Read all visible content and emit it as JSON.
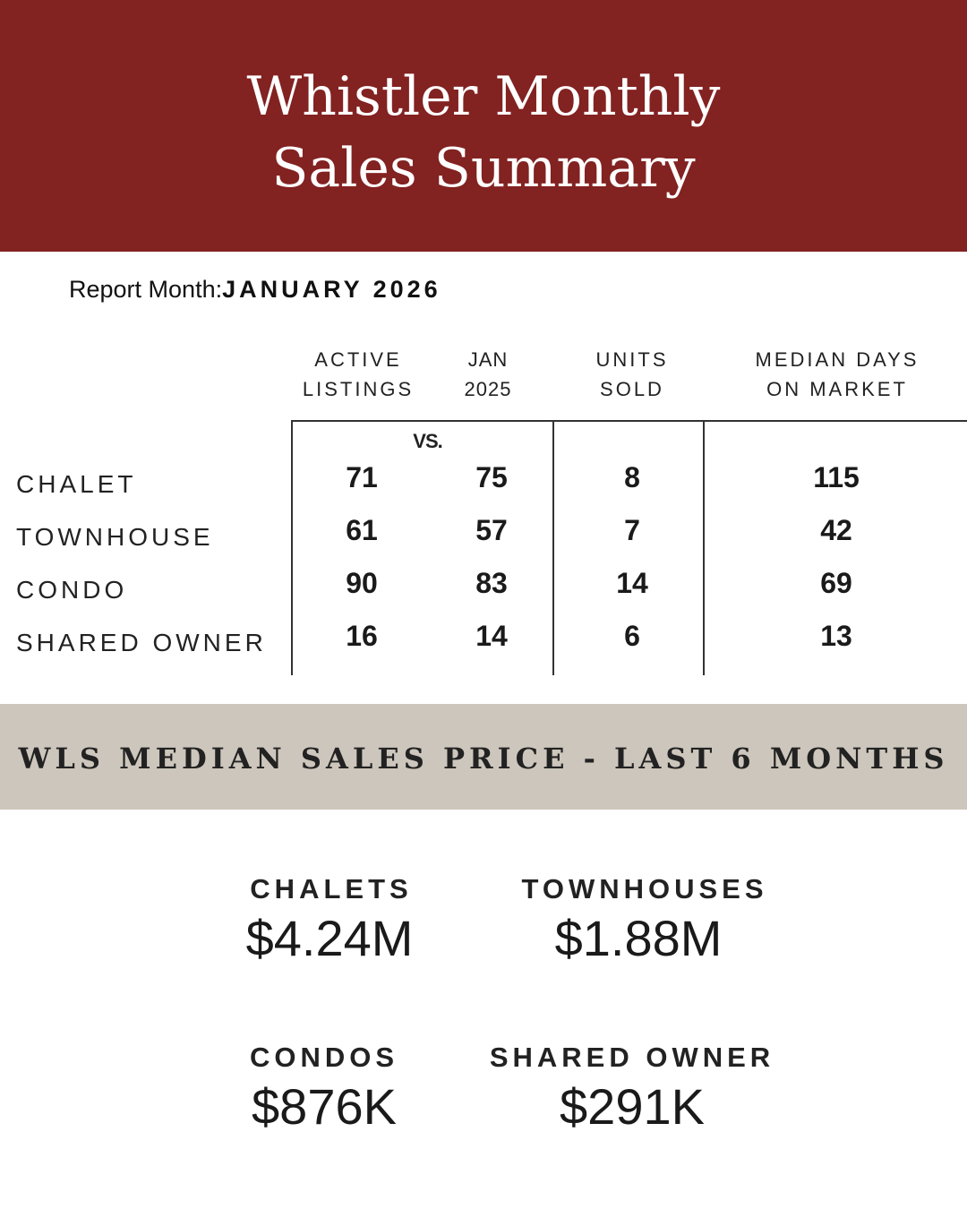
{
  "header": {
    "title_line1": "Whistler Monthly",
    "title_line2": "Sales Summary",
    "bg_color": "#822221"
  },
  "report": {
    "label": "Report Month:",
    "month": "JANUARY 2026"
  },
  "table": {
    "columns": [
      {
        "line1": "ACTIVE",
        "line2": "LISTINGS"
      },
      {
        "line1": "JAN",
        "line2": "2025"
      },
      {
        "line1": "UNITS",
        "line2": "SOLD"
      },
      {
        "line1": "MEDIAN DAYS",
        "line2": "ON MARKET"
      }
    ],
    "vs_label": "VS.",
    "rows": [
      {
        "label": "CHALET",
        "values": [
          "71",
          "75",
          "8",
          "115"
        ]
      },
      {
        "label": "TOWNHOUSE",
        "values": [
          "61",
          "57",
          "7",
          "42"
        ]
      },
      {
        "label": "CONDO",
        "values": [
          "90",
          "83",
          "14",
          "69"
        ]
      },
      {
        "label": "SHARED OWNER",
        "values": [
          "16",
          "14",
          "6",
          "13"
        ]
      }
    ]
  },
  "band": {
    "title": "WLS MEDIAN SALES PRICE - LAST 6 MONTHS",
    "bg_color": "#cdc6bc"
  },
  "prices": [
    {
      "label": "CHALETS",
      "value": "$4.24M"
    },
    {
      "label": "TOWNHOUSES",
      "value": "$1.88M"
    },
    {
      "label": "CONDOS",
      "value": "$876K"
    },
    {
      "label": "SHARED OWNER",
      "value": "$291K"
    }
  ]
}
